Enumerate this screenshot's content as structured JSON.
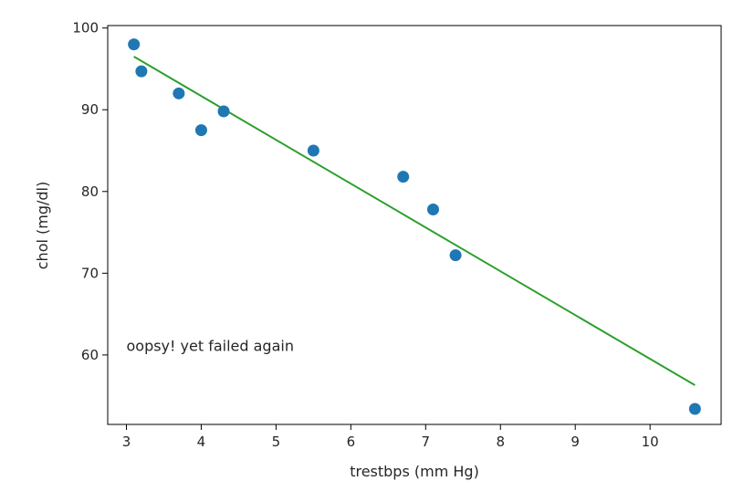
{
  "chart_data": {
    "type": "scatter",
    "title": "",
    "xlabel": "trestbps (mm Hg)",
    "ylabel": "chol (mg/dl)",
    "xlim": [
      2.75,
      10.95
    ],
    "ylim": [
      51.5,
      100.3
    ],
    "xticks": [
      3,
      4,
      5,
      6,
      7,
      8,
      9,
      10
    ],
    "yticks": [
      60,
      70,
      80,
      90,
      100
    ],
    "grid": false,
    "legend": "none",
    "points": {
      "x": [
        3.1,
        3.2,
        3.7,
        4.0,
        4.3,
        5.5,
        6.7,
        7.1,
        7.4,
        10.6
      ],
      "y": [
        98.0,
        94.7,
        92.0,
        87.5,
        89.8,
        85.0,
        81.8,
        77.8,
        72.2,
        53.4
      ],
      "color": "#1f77b4"
    },
    "fit_line": {
      "x": [
        3.1,
        10.6
      ],
      "y": [
        96.5,
        56.3
      ],
      "color": "#2ca02c"
    },
    "annotation": {
      "text": "oopsy! yet failed again",
      "x": 3.0,
      "y": 60.5
    }
  }
}
